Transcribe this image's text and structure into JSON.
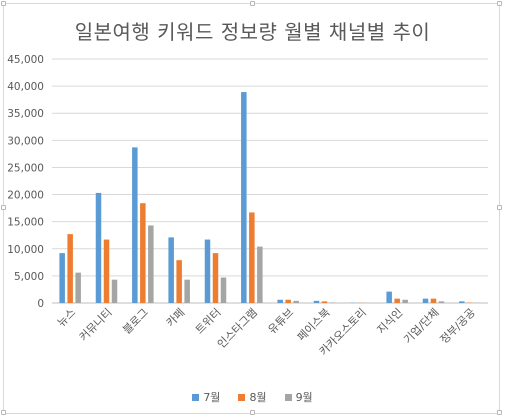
{
  "chart_data": {
    "type": "bar",
    "title": "일본여행 키워드 정보량 월별 채널별 추이",
    "xlabel": "",
    "ylabel": "",
    "ylim": [
      0,
      45000
    ],
    "yticks": [
      "0",
      "5,000",
      "10,000",
      "15,000",
      "20,000",
      "25,000",
      "30,000",
      "35,000",
      "40,000",
      "45,000"
    ],
    "grid": true,
    "legend_position": "bottom",
    "categories": [
      "뉴스",
      "커뮤니티",
      "블로그",
      "카페",
      "트위터",
      "인스타그램",
      "유튜브",
      "페이스북",
      "카카오스토리",
      "지식인",
      "기업/단체",
      "정부/공공"
    ],
    "series": [
      {
        "name": "7월",
        "color": "#5b9bd5",
        "values": [
          9200,
          20300,
          28700,
          12100,
          11700,
          38900,
          600,
          400,
          50,
          2100,
          800,
          300
        ]
      },
      {
        "name": "8월",
        "color": "#ed7d31",
        "values": [
          12700,
          11700,
          18400,
          7900,
          9200,
          16700,
          600,
          300,
          30,
          800,
          800,
          80
        ]
      },
      {
        "name": "9월",
        "color": "#a5a5a5",
        "values": [
          5600,
          4300,
          14300,
          4300,
          4700,
          10400,
          400,
          100,
          20,
          600,
          300,
          50
        ]
      }
    ]
  }
}
